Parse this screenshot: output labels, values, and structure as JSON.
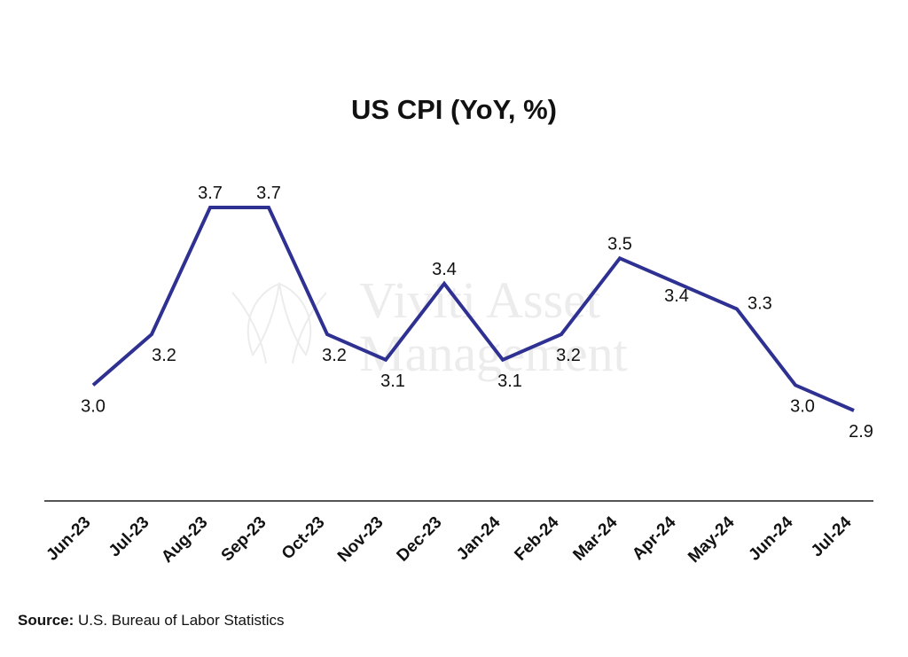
{
  "chart_data": {
    "type": "line",
    "title": "US CPI (YoY, %)",
    "categories": [
      "Jun-23",
      "Jul-23",
      "Aug-23",
      "Sep-23",
      "Oct-23",
      "Nov-23",
      "Dec-23",
      "Jan-24",
      "Feb-24",
      "Mar-24",
      "Apr-24",
      "May-24",
      "Jun-24",
      "Jul-24"
    ],
    "series": [
      {
        "values": [
          3.0,
          3.2,
          3.7,
          3.7,
          3.2,
          3.1,
          3.4,
          3.1,
          3.2,
          3.5,
          3.4,
          3.3,
          3.0,
          2.9
        ],
        "labels": [
          "3.0",
          "3.2",
          "3.7",
          "3.7",
          "3.2",
          "3.1",
          "3.4",
          "3.1",
          "3.2",
          "3.5",
          "3.4",
          "3.3",
          "3.0",
          "2.9"
        ],
        "color": "#2e3192"
      }
    ],
    "xlabel": "",
    "ylabel": "",
    "grid": false,
    "legend": "none"
  },
  "watermark": {
    "line1": "Viviti Asset",
    "line2": "Management"
  },
  "source": {
    "label": "Source:",
    "text": " U.S. Bureau of Labor Statistics"
  }
}
